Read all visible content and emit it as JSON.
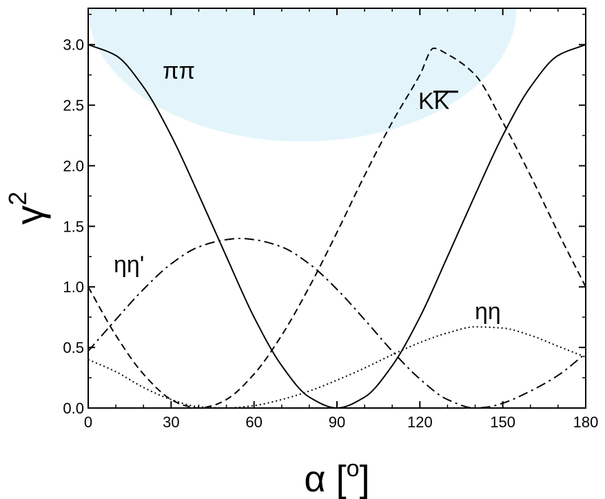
{
  "chart_data": {
    "type": "line",
    "title": "",
    "xlabel": "α [o]",
    "ylabel": "γ2",
    "xlim": [
      0,
      180
    ],
    "ylim": [
      0,
      3.3
    ],
    "x_ticks": [
      "0",
      "30",
      "60",
      "90",
      "120",
      "150",
      "180"
    ],
    "y_ticks": [
      "0.0",
      "0.5",
      "1.0",
      "1.5",
      "2.0",
      "2.5",
      "3.0"
    ],
    "grid": false,
    "legend": "none",
    "background_region": {
      "shape": "half-ellipse",
      "color": "#e3f5fb",
      "x_range": [
        0,
        155
      ],
      "y_range": [
        2.2,
        3.3
      ]
    },
    "series": [
      {
        "name": "ππ",
        "style": "solid",
        "x": [
          0,
          10,
          20,
          30,
          40,
          50,
          60,
          70,
          80,
          90,
          100,
          110,
          120,
          130,
          140,
          150,
          160,
          170,
          180
        ],
        "y": [
          3.0,
          2.91,
          2.65,
          2.25,
          1.76,
          1.25,
          0.75,
          0.35,
          0.09,
          0.0,
          0.09,
          0.35,
          0.75,
          1.25,
          1.76,
          2.25,
          2.65,
          2.91,
          3.0
        ]
      },
      {
        "name": "KK",
        "label_overline": true,
        "style": "dashed",
        "x": [
          0,
          10,
          20,
          30,
          35,
          40,
          45,
          50,
          60,
          70,
          80,
          90,
          100,
          110,
          120,
          125,
          130,
          140,
          150,
          160,
          170,
          180
        ],
        "y": [
          1.0,
          0.6,
          0.28,
          0.07,
          0.02,
          0.0,
          0.02,
          0.07,
          0.28,
          0.6,
          1.0,
          1.45,
          1.92,
          2.36,
          2.75,
          2.97,
          2.92,
          2.75,
          2.36,
          1.92,
          1.45,
          1.0
        ]
      },
      {
        "name": "ηη'",
        "style": "dash-dot",
        "x": [
          0,
          10,
          20,
          30,
          40,
          50,
          55,
          60,
          70,
          80,
          90,
          100,
          110,
          120,
          130,
          140,
          145,
          150,
          160,
          170,
          180
        ],
        "y": [
          0.47,
          0.73,
          0.98,
          1.19,
          1.33,
          1.39,
          1.4,
          1.39,
          1.33,
          1.19,
          0.98,
          0.73,
          0.47,
          0.24,
          0.07,
          0.0,
          0.01,
          0.04,
          0.14,
          0.27,
          0.45
        ]
      },
      {
        "name": "ηη",
        "style": "dotted",
        "x": [
          0,
          10,
          20,
          30,
          40,
          50,
          60,
          70,
          80,
          90,
          100,
          110,
          120,
          130,
          140,
          150,
          160,
          170,
          180
        ],
        "y": [
          0.4,
          0.3,
          0.17,
          0.07,
          0.01,
          0.0,
          0.02,
          0.07,
          0.14,
          0.23,
          0.33,
          0.44,
          0.54,
          0.62,
          0.67,
          0.66,
          0.6,
          0.51,
          0.42
        ]
      }
    ],
    "curve_labels": [
      "ππ",
      "KK",
      "ηη'",
      "ηη"
    ]
  }
}
